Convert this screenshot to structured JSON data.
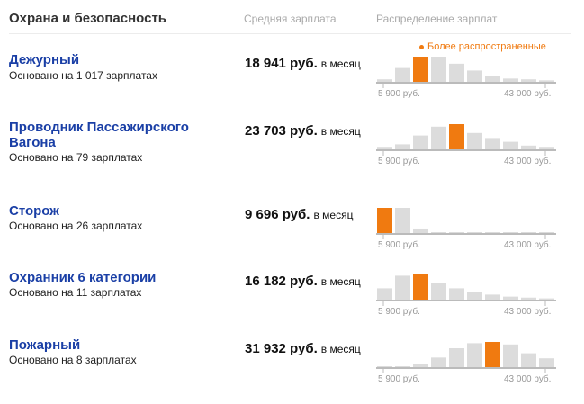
{
  "header": {
    "category": "Охрана и безопасность",
    "avg_label": "Средняя зарплата",
    "dist_label": "Распределение зарплат"
  },
  "legend": {
    "most_common": "Более распространенные"
  },
  "colors": {
    "title_link": "#1a3fa6",
    "highlight": "#f07a10",
    "bar": "#dcdcdc"
  },
  "jobs": [
    {
      "title": "Дежурный",
      "basis": "Основано на 1 017 зарплатах",
      "salary": "18 941 руб.",
      "unit": "в месяц",
      "range_min": "5 900 руб.",
      "range_max": "43 000 руб.",
      "distribution": [
        0.1,
        0.55,
        1.0,
        1.0,
        0.72,
        0.45,
        0.25,
        0.13,
        0.1,
        0.06
      ],
      "highlight_index": 2
    },
    {
      "title": "Проводник Пассажирского Вагона",
      "basis": "Основано на 79 зарплатах",
      "salary": "23 703 руб.",
      "unit": "в месяц",
      "range_min": "5 900 руб.",
      "range_max": "43 000 руб.",
      "distribution": [
        0.1,
        0.2,
        0.55,
        0.9,
        1.0,
        0.65,
        0.45,
        0.3,
        0.15,
        0.1
      ],
      "highlight_index": 4
    },
    {
      "title": "Сторож",
      "basis": "Основано на 26 зарплатах",
      "salary": "9 696 руб.",
      "unit": "в месяц",
      "range_min": "5 900 руб.",
      "range_max": "43 000 руб.",
      "distribution": [
        1.0,
        1.0,
        0.18,
        0.02,
        0.02,
        0.02,
        0.02,
        0.02,
        0.02,
        0.02
      ],
      "highlight_index": 0
    },
    {
      "title": "Охранник 6 категории",
      "basis": "Основано на 11 зарплатах",
      "salary": "16 182 руб.",
      "unit": "в месяц",
      "range_min": "5 900 руб.",
      "range_max": "43 000 руб.",
      "distribution": [
        0.45,
        0.95,
        1.0,
        0.65,
        0.45,
        0.3,
        0.2,
        0.12,
        0.08,
        0.05
      ],
      "highlight_index": 2
    },
    {
      "title": "Пожарный",
      "basis": "Основано на 8 зарплатах",
      "salary": "31 932 руб.",
      "unit": "в месяц",
      "range_min": "5 900 руб.",
      "range_max": "43 000 руб.",
      "distribution": [
        0.02,
        0.02,
        0.12,
        0.38,
        0.75,
        0.95,
        1.0,
        0.9,
        0.55,
        0.35
      ],
      "highlight_index": 6
    }
  ]
}
